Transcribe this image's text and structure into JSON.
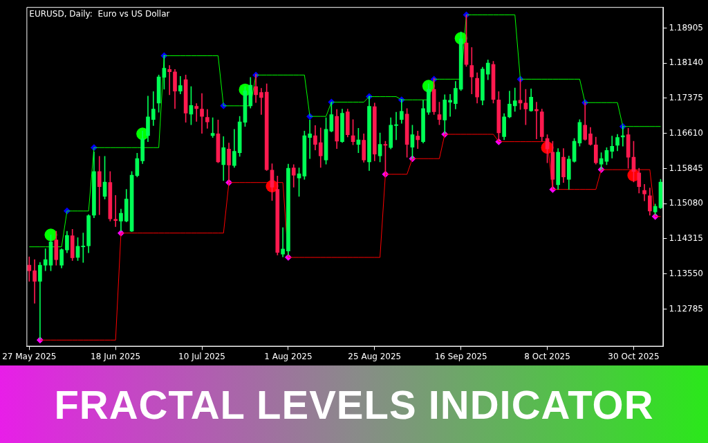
{
  "chart_data": {
    "type": "candlestick",
    "title": "FRACTAL LEVELS INDICATOR",
    "subtitle": "EURUSD, Daily:  Euro vs US Dollar",
    "categories": [
      "27 May 2025",
      null,
      null,
      null,
      null,
      null,
      null,
      null,
      null,
      null,
      null,
      null,
      null,
      null,
      null,
      null,
      "18 Jun 2025",
      null,
      null,
      null,
      null,
      null,
      null,
      null,
      null,
      null,
      null,
      null,
      null,
      null,
      null,
      null,
      "10 Jul 2025",
      null,
      null,
      null,
      null,
      null,
      null,
      null,
      null,
      null,
      null,
      null,
      null,
      null,
      null,
      null,
      "1 Aug 2025",
      null,
      null,
      null,
      null,
      null,
      null,
      null,
      null,
      null,
      null,
      null,
      null,
      null,
      null,
      null,
      "25 Aug 2025",
      null,
      null,
      null,
      null,
      null,
      null,
      null,
      null,
      null,
      null,
      null,
      null,
      null,
      null,
      null,
      "16 Sep 2025",
      null,
      null,
      null,
      null,
      null,
      null,
      null,
      null,
      null,
      null,
      null,
      null,
      null,
      null,
      null,
      "8 Oct 2025",
      null,
      null,
      null,
      null,
      null,
      null,
      null,
      null,
      null,
      null,
      null,
      null,
      null,
      null,
      null,
      "30 Oct 2025",
      null,
      null,
      null,
      null,
      null
    ],
    "ohlc": [
      [
        1.1374,
        1.1392,
        1.1339,
        1.1362
      ],
      [
        1.1362,
        1.1386,
        1.1291,
        1.1339
      ],
      [
        1.1339,
        1.138,
        1.1213,
        1.1374
      ],
      [
        1.1374,
        1.141,
        1.1362,
        1.1386
      ],
      [
        1.1374,
        1.144,
        1.1362,
        1.1425
      ],
      [
        1.1429,
        1.1448,
        1.1374,
        1.1386
      ],
      [
        1.1374,
        1.141,
        1.1368,
        1.1408
      ],
      [
        1.1407,
        1.1448,
        1.1401,
        1.1439
      ],
      [
        1.1438,
        1.1452,
        1.1384,
        1.139
      ],
      [
        1.1391,
        1.1434,
        1.1384,
        1.1415
      ],
      [
        1.1414,
        1.1444,
        1.138,
        1.1416
      ],
      [
        1.1416,
        1.1484,
        1.1401,
        1.1482
      ],
      [
        1.1483,
        1.1621,
        1.1477,
        1.1578
      ],
      [
        1.1578,
        1.1611,
        1.1484,
        1.1545
      ],
      [
        1.1524,
        1.1611,
        1.1518,
        1.1555
      ],
      [
        1.1554,
        1.1578,
        1.147,
        1.1475
      ],
      [
        1.1474,
        1.1526,
        1.1458,
        1.1471
      ],
      [
        1.147,
        1.1496,
        1.1448,
        1.1487
      ],
      [
        1.147,
        1.1539,
        1.1468,
        1.1518
      ],
      [
        1.1448,
        1.1578,
        1.1447,
        1.157
      ],
      [
        1.1569,
        1.1618,
        1.1566,
        1.1606
      ],
      [
        1.1601,
        1.1666,
        1.1595,
        1.1649
      ],
      [
        1.1656,
        1.1742,
        1.1643,
        1.1697
      ],
      [
        1.1691,
        1.1752,
        1.1678,
        1.1714
      ],
      [
        1.1727,
        1.1788,
        1.1707,
        1.1784
      ],
      [
        1.1783,
        1.1831,
        1.1757,
        1.1803
      ],
      [
        1.18,
        1.1809,
        1.1745,
        1.1795
      ],
      [
        1.1795,
        1.18,
        1.1715,
        1.1753
      ],
      [
        1.1753,
        1.1785,
        1.1747,
        1.1765
      ],
      [
        1.1778,
        1.1788,
        1.1685,
        1.1705
      ],
      [
        1.1703,
        1.1763,
        1.168,
        1.1722
      ],
      [
        1.172,
        1.1726,
        1.1687,
        1.1715
      ],
      [
        1.1714,
        1.1748,
        1.1661,
        1.1698
      ],
      [
        1.1696,
        1.1713,
        1.1672,
        1.1686
      ],
      [
        1.1656,
        1.1695,
        1.1652,
        1.1661
      ],
      [
        1.166,
        1.169,
        1.1597,
        1.1599
      ],
      [
        1.1593,
        1.1654,
        1.1558,
        1.163
      ],
      [
        1.1627,
        1.164,
        1.1556,
        1.1592
      ],
      [
        1.1591,
        1.167,
        1.1587,
        1.1622
      ],
      [
        1.1619,
        1.1698,
        1.1611,
        1.1686
      ],
      [
        1.1685,
        1.1763,
        1.1676,
        1.1754
      ],
      [
        1.1721,
        1.1783,
        1.1716,
        1.1766
      ],
      [
        1.1763,
        1.179,
        1.1728,
        1.1745
      ],
      [
        1.175,
        1.1759,
        1.1702,
        1.1739
      ],
      [
        1.1751,
        1.1769,
        1.158,
        1.1582
      ],
      [
        1.1581,
        1.1595,
        1.1515,
        1.1544
      ],
      [
        1.1539,
        1.1568,
        1.1396,
        1.1402
      ],
      [
        1.1398,
        1.1456,
        1.1392,
        1.1409
      ],
      [
        1.1405,
        1.1594,
        1.1396,
        1.1585
      ],
      [
        1.1586,
        1.1593,
        1.1544,
        1.157
      ],
      [
        1.1564,
        1.1586,
        1.1524,
        1.1573
      ],
      [
        1.1568,
        1.1666,
        1.1561,
        1.1656
      ],
      [
        1.1652,
        1.169,
        1.1606,
        1.166
      ],
      [
        1.1656,
        1.1678,
        1.1625,
        1.1637
      ],
      [
        1.1641,
        1.1673,
        1.1587,
        1.1612
      ],
      [
        1.1603,
        1.1695,
        1.1594,
        1.167
      ],
      [
        1.1666,
        1.1729,
        1.1664,
        1.1702
      ],
      [
        1.1698,
        1.1713,
        1.1628,
        1.1644
      ],
      [
        1.1643,
        1.1714,
        1.1641,
        1.1705
      ],
      [
        1.1708,
        1.1714,
        1.1653,
        1.1658
      ],
      [
        1.1656,
        1.1691,
        1.1636,
        1.1643
      ],
      [
        1.1637,
        1.1672,
        1.1619,
        1.1647
      ],
      [
        1.1646,
        1.166,
        1.1598,
        1.1603
      ],
      [
        1.1599,
        1.1742,
        1.158,
        1.172
      ],
      [
        1.1719,
        1.1727,
        1.1601,
        1.1616
      ],
      [
        1.1612,
        1.1662,
        1.1599,
        1.1637
      ],
      [
        1.1637,
        1.1644,
        1.1572,
        1.1635
      ],
      [
        1.163,
        1.1695,
        1.1627,
        1.1679
      ],
      [
        1.1678,
        1.1707,
        1.1647,
        1.168
      ],
      [
        1.1691,
        1.1735,
        1.1683,
        1.1709
      ],
      [
        1.1703,
        1.1715,
        1.1609,
        1.1637
      ],
      [
        1.1631,
        1.1679,
        1.1606,
        1.1658
      ],
      [
        1.1655,
        1.1666,
        1.1628,
        1.1647
      ],
      [
        1.1643,
        1.1733,
        1.164,
        1.1715
      ],
      [
        1.1707,
        1.1769,
        1.1702,
        1.1757
      ],
      [
        1.1757,
        1.1781,
        1.1702,
        1.1708
      ],
      [
        1.1702,
        1.1729,
        1.168,
        1.1691
      ],
      [
        1.169,
        1.1745,
        1.1661,
        1.1734
      ],
      [
        1.1729,
        1.1746,
        1.1698,
        1.1733
      ],
      [
        1.1726,
        1.1774,
        1.1714,
        1.1759
      ],
      [
        1.1757,
        1.1882,
        1.1754,
        1.1867
      ],
      [
        1.1858,
        1.1919,
        1.1807,
        1.1811
      ],
      [
        1.1809,
        1.1848,
        1.1747,
        1.1784
      ],
      [
        1.1781,
        1.1793,
        1.1727,
        1.174
      ],
      [
        1.1733,
        1.1805,
        1.1723,
        1.1801
      ],
      [
        1.179,
        1.1821,
        1.1778,
        1.1814
      ],
      [
        1.1811,
        1.1818,
        1.1727,
        1.1735
      ],
      [
        1.1734,
        1.1752,
        1.1646,
        1.1662
      ],
      [
        1.1654,
        1.1704,
        1.1647,
        1.1697
      ],
      [
        1.1697,
        1.1753,
        1.1695,
        1.1725
      ],
      [
        1.1721,
        1.176,
        1.1709,
        1.1732
      ],
      [
        1.1733,
        1.1779,
        1.1713,
        1.1727
      ],
      [
        1.1727,
        1.1757,
        1.168,
        1.1714
      ],
      [
        1.171,
        1.1758,
        1.1709,
        1.174
      ],
      [
        1.1713,
        1.1729,
        1.1649,
        1.171
      ],
      [
        1.1708,
        1.1714,
        1.1644,
        1.1654
      ],
      [
        1.165,
        1.1658,
        1.1597,
        1.1627
      ],
      [
        1.162,
        1.1644,
        1.1542,
        1.1561
      ],
      [
        1.1549,
        1.1628,
        1.1539,
        1.162
      ],
      [
        1.1609,
        1.1628,
        1.1554,
        1.1566
      ],
      [
        1.1561,
        1.1612,
        1.1539,
        1.1605
      ],
      [
        1.16,
        1.165,
        1.1598,
        1.1644
      ],
      [
        1.164,
        1.1691,
        1.1633,
        1.1685
      ],
      [
        1.1679,
        1.1728,
        1.1646,
        1.1648
      ],
      [
        1.166,
        1.1674,
        1.1635,
        1.1637
      ],
      [
        1.1636,
        1.1653,
        1.1594,
        1.1597
      ],
      [
        1.1594,
        1.1619,
        1.1582,
        1.1606
      ],
      [
        1.16,
        1.163,
        1.1593,
        1.1624
      ],
      [
        1.1622,
        1.1655,
        1.1607,
        1.1633
      ],
      [
        1.1635,
        1.1659,
        1.1623,
        1.1652
      ],
      [
        1.1653,
        1.1676,
        1.1633,
        1.1656
      ],
      [
        1.1658,
        1.1672,
        1.1585,
        1.1609
      ],
      [
        1.1609,
        1.1644,
        1.1555,
        1.1578
      ],
      [
        1.1575,
        1.1585,
        1.1531,
        1.1545
      ],
      [
        1.1537,
        1.155,
        1.1514,
        1.1529
      ],
      [
        1.1525,
        1.1542,
        1.1483,
        1.1492
      ],
      [
        1.149,
        1.1507,
        1.1484,
        1.1502
      ],
      [
        1.1499,
        1.1561,
        1.1497,
        1.1555
      ]
    ],
    "colors": [
      "#ff1a4f",
      "#ff1a4f",
      "#00ff55",
      "#00ff55",
      "#00ff55",
      "#ff1a4f",
      "#00ff55",
      "#00ff55",
      "#ff1a4f",
      "#00ff55",
      "#00ff55",
      "#00ff55",
      "#00ff55",
      "#ff1a4f",
      "#00ff55",
      "#ff1a4f",
      "#ff1a4f",
      "#00ff55",
      "#00ff55",
      "#00ff55",
      "#00ff55",
      "#00ff55",
      "#00ff55",
      "#00ff55",
      "#00ff55",
      "#00ff55",
      "#ff1a4f",
      "#ff1a4f",
      "#00ff55",
      "#ff1a4f",
      "#00ff55",
      "#ff1a4f",
      "#ff1a4f",
      "#ff1a4f",
      "#00ff55",
      "#ff1a4f",
      "#00ff55",
      "#ff1a4f",
      "#00ff55",
      "#00ff55",
      "#00ff55",
      "#00ff55",
      "#ff1a4f",
      "#ff1a4f",
      "#ff1a4f",
      "#ff1a4f",
      "#ff1a4f",
      "#00ff55",
      "#00ff55",
      "#ff1a4f",
      "#00ff55",
      "#00ff55",
      "#00ff55",
      "#ff1a4f",
      "#ff1a4f",
      "#00ff55",
      "#00ff55",
      "#ff1a4f",
      "#00ff55",
      "#ff1a4f",
      "#ff1a4f",
      "#00ff55",
      "#ff1a4f",
      "#00ff55",
      "#ff1a4f",
      "#00ff55",
      "#ff1a4f",
      "#00ff55",
      "#00ff55",
      "#00ff55",
      "#ff1a4f",
      "#00ff55",
      "#ff1a4f",
      "#00ff55",
      "#00ff55",
      "#ff1a4f",
      "#ff1a4f",
      "#00ff55",
      "#00ff55",
      "#00ff55",
      "#00ff55",
      "#ff1a4f",
      "#ff1a4f",
      "#ff1a4f",
      "#00ff55",
      "#00ff55",
      "#ff1a4f",
      "#ff1a4f",
      "#00ff55",
      "#00ff55",
      "#00ff55",
      "#ff1a4f",
      "#ff1a4f",
      "#00ff55",
      "#ff1a4f",
      "#ff1a4f",
      "#ff1a4f",
      "#ff1a4f",
      "#00ff55",
      "#ff1a4f",
      "#00ff55",
      "#00ff55",
      "#00ff55",
      "#ff1a4f",
      "#ff1a4f",
      "#ff1a4f",
      "#00ff55",
      "#00ff55",
      "#00ff55",
      "#00ff55",
      "#00ff55",
      "#ff1a4f",
      "#ff1a4f",
      "#ff1a4f",
      "#ff1a4f",
      "#ff1a4f",
      "#00ff55",
      "#00ff55"
    ],
    "series": [
      {
        "type": "line",
        "color": "#00ff00",
        "marker": "none",
        "values": [
          1.1414,
          1.1414,
          1.1414,
          1.1414,
          1.1414,
          1.1414,
          1.1414,
          1.1492,
          1.1492,
          1.1492,
          1.1492,
          1.1492,
          1.163,
          1.163,
          1.163,
          1.163,
          1.163,
          1.163,
          1.163,
          1.163,
          1.163,
          1.163,
          1.163,
          1.163,
          1.163,
          1.183,
          1.183,
          1.183,
          1.183,
          1.183,
          1.183,
          1.183,
          1.183,
          1.183,
          1.183,
          1.183,
          1.1721,
          1.1721,
          1.1721,
          1.1721,
          1.1721,
          1.1721,
          1.1788,
          1.1788,
          1.1788,
          1.1788,
          1.1788,
          1.1788,
          1.1788,
          1.1788,
          1.1788,
          1.1788,
          1.1698,
          1.1698,
          1.1698,
          1.1698,
          1.1729,
          1.1729,
          1.1729,
          1.1729,
          1.1729,
          1.1729,
          1.1729,
          1.1741,
          1.1741,
          1.1741,
          1.1741,
          1.1741,
          1.1741,
          1.1734,
          1.1734,
          1.1734,
          1.1734,
          1.1734,
          1.1734,
          1.1779,
          1.1779,
          1.1779,
          1.1779,
          1.1779,
          1.1779,
          1.1919,
          1.1919,
          1.1919,
          1.1919,
          1.1919,
          1.1919,
          1.1919,
          1.1919,
          1.1919,
          1.1919,
          1.1779,
          1.1779,
          1.1779,
          1.1779,
          1.1779,
          1.1779,
          1.1779,
          1.1779,
          1.1779,
          1.1779,
          1.1779,
          1.1779,
          1.1728,
          1.1728,
          1.1728,
          1.1728,
          1.1728,
          1.1728,
          1.1728,
          1.1676,
          1.1676,
          1.1676,
          1.1676,
          1.1676,
          1.1676,
          1.1676,
          1.1676
        ]
      },
      {
        "type": "line",
        "color": "#ff0000",
        "marker": "none",
        "values": [
          null,
          null,
          1.1211,
          1.1211,
          1.1211,
          1.1211,
          1.1211,
          1.1211,
          1.1211,
          1.1211,
          1.1211,
          1.1211,
          1.1211,
          1.1211,
          1.1211,
          1.1211,
          1.1211,
          1.1444,
          1.1444,
          1.1444,
          1.1444,
          1.1444,
          1.1444,
          1.1444,
          1.1444,
          1.1444,
          1.1444,
          1.1444,
          1.1444,
          1.1444,
          1.1444,
          1.1444,
          1.1444,
          1.1444,
          1.1444,
          1.1444,
          1.1444,
          1.1554,
          1.1554,
          1.1554,
          1.1554,
          1.1554,
          1.1554,
          1.1554,
          1.1554,
          1.1554,
          1.1554,
          1.1554,
          1.1391,
          1.1391,
          1.1391,
          1.1391,
          1.1391,
          1.1391,
          1.1391,
          1.1391,
          1.1391,
          1.1391,
          1.1391,
          1.1391,
          1.1391,
          1.1391,
          1.1391,
          1.1391,
          1.1391,
          1.1391,
          1.1572,
          1.1572,
          1.1572,
          1.1572,
          1.1572,
          1.1606,
          1.1606,
          1.1606,
          1.1606,
          1.1606,
          1.1606,
          1.1659,
          1.1659,
          1.1659,
          1.1659,
          1.1659,
          1.1659,
          1.1659,
          1.1659,
          1.1659,
          1.1659,
          1.1643,
          1.1643,
          1.1643,
          1.1643,
          1.1643,
          1.1643,
          1.1643,
          1.1643,
          1.1643,
          1.1643,
          1.1539,
          1.1539,
          1.1539,
          1.1539,
          1.1539,
          1.1539,
          1.1539,
          1.1539,
          1.1539,
          1.1582,
          1.1582,
          1.1582,
          1.1582,
          1.1582,
          1.1582,
          1.1582,
          1.1582,
          1.1582,
          1.1582,
          1.148,
          1.148
        ]
      },
      {
        "type": "scatter",
        "color": "#0000ff",
        "marker": "diamond",
        "values": [
          null,
          null,
          null,
          null,
          null,
          null,
          null,
          1.1492,
          null,
          null,
          null,
          null,
          1.163,
          null,
          null,
          null,
          null,
          null,
          null,
          null,
          null,
          null,
          null,
          null,
          null,
          1.183,
          null,
          null,
          null,
          null,
          null,
          null,
          null,
          null,
          null,
          null,
          1.1721,
          null,
          null,
          null,
          null,
          null,
          1.1788,
          null,
          null,
          null,
          null,
          null,
          null,
          null,
          null,
          null,
          1.1698,
          null,
          null,
          null,
          1.1729,
          null,
          null,
          null,
          null,
          null,
          null,
          1.1741,
          null,
          null,
          null,
          null,
          null,
          1.1734,
          null,
          null,
          null,
          null,
          null,
          1.1779,
          null,
          null,
          null,
          null,
          null,
          1.1919,
          null,
          null,
          null,
          null,
          null,
          null,
          null,
          null,
          null,
          1.1779,
          null,
          null,
          null,
          null,
          null,
          null,
          null,
          null,
          null,
          null,
          null,
          1.1728,
          null,
          null,
          null,
          null,
          null,
          null,
          1.1676,
          null,
          null,
          null,
          null,
          null,
          null,
          null
        ]
      },
      {
        "type": "scatter",
        "color": "#ff00ff",
        "marker": "diamond",
        "values": [
          null,
          null,
          1.1211,
          null,
          null,
          null,
          null,
          null,
          null,
          null,
          null,
          null,
          null,
          null,
          null,
          null,
          null,
          1.1444,
          null,
          null,
          null,
          null,
          null,
          null,
          null,
          null,
          null,
          null,
          null,
          null,
          null,
          null,
          null,
          null,
          null,
          null,
          null,
          1.1554,
          null,
          null,
          null,
          null,
          null,
          null,
          null,
          null,
          null,
          null,
          1.1391,
          null,
          null,
          null,
          null,
          null,
          null,
          null,
          null,
          null,
          null,
          null,
          null,
          null,
          null,
          null,
          null,
          null,
          1.1572,
          null,
          null,
          null,
          null,
          1.1606,
          null,
          null,
          null,
          null,
          null,
          1.1659,
          null,
          null,
          null,
          null,
          null,
          null,
          null,
          null,
          null,
          1.1643,
          null,
          null,
          null,
          null,
          null,
          null,
          null,
          null,
          null,
          1.1539,
          null,
          null,
          null,
          null,
          null,
          null,
          null,
          null,
          1.1582,
          null,
          null,
          null,
          null,
          null,
          null,
          null,
          null,
          null,
          1.148,
          null
        ]
      },
      {
        "type": "scatter",
        "color": "#00ff00",
        "marker": "circle",
        "values": [
          null,
          null,
          null,
          null,
          1.144,
          null,
          null,
          null,
          null,
          null,
          null,
          null,
          null,
          null,
          null,
          null,
          null,
          null,
          null,
          null,
          null,
          1.166,
          null,
          null,
          null,
          null,
          null,
          null,
          null,
          null,
          null,
          null,
          null,
          null,
          null,
          null,
          null,
          null,
          null,
          null,
          1.1756,
          null,
          null,
          null,
          null,
          null,
          null,
          null,
          null,
          null,
          null,
          null,
          null,
          null,
          null,
          null,
          null,
          null,
          null,
          null,
          null,
          null,
          null,
          null,
          null,
          null,
          null,
          null,
          null,
          null,
          null,
          null,
          null,
          null,
          1.1764,
          null,
          null,
          null,
          null,
          null,
          1.1868,
          null,
          null,
          null,
          null,
          null,
          null,
          null,
          null,
          null,
          null,
          null,
          null,
          null,
          null,
          null,
          null,
          null,
          null,
          null,
          null,
          null,
          null,
          null,
          null,
          null,
          null,
          null,
          null,
          null,
          null,
          null,
          null,
          null,
          null,
          null,
          null,
          null
        ]
      },
      {
        "type": "scatter",
        "color": "#ff0000",
        "marker": "circle",
        "values": [
          null,
          null,
          null,
          null,
          null,
          null,
          null,
          null,
          null,
          null,
          null,
          null,
          null,
          null,
          null,
          null,
          null,
          null,
          null,
          null,
          null,
          null,
          null,
          null,
          null,
          null,
          null,
          null,
          null,
          null,
          null,
          null,
          null,
          null,
          null,
          null,
          null,
          null,
          null,
          null,
          null,
          null,
          null,
          null,
          null,
          1.1546,
          null,
          null,
          null,
          null,
          null,
          null,
          null,
          null,
          null,
          null,
          null,
          null,
          null,
          null,
          null,
          null,
          null,
          null,
          null,
          null,
          null,
          null,
          null,
          null,
          null,
          null,
          null,
          null,
          null,
          null,
          null,
          null,
          null,
          null,
          null,
          null,
          null,
          null,
          null,
          null,
          null,
          null,
          null,
          null,
          null,
          null,
          null,
          null,
          null,
          null,
          1.163,
          null,
          null,
          null,
          null,
          null,
          null,
          null,
          null,
          null,
          null,
          null,
          null,
          null,
          null,
          null,
          1.157,
          null,
          null,
          null,
          null,
          null
        ]
      }
    ],
    "ylim": [
      1.1197,
      1.1936
    ],
    "yticks": [
      1.12785,
      {
        "value": 1.1355,
        "label": "1.13550"
      },
      1.14315,
      {
        "value": 1.1508,
        "label": "1.15080"
      },
      1.15845,
      {
        "value": 1.1661,
        "label": "1.16610"
      },
      1.17375,
      {
        "value": 1.1814,
        "label": "1.18140"
      },
      1.18905
    ]
  }
}
